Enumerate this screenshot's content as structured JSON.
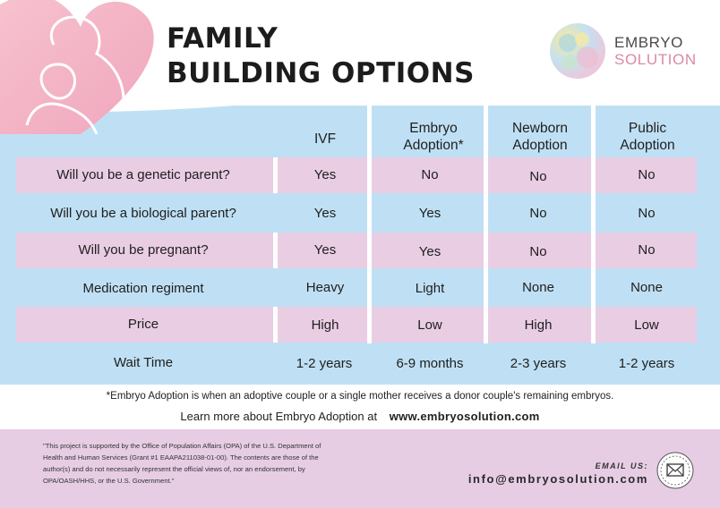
{
  "title": {
    "line1": "FAMILY",
    "line2": "BUILDING OPTIONS"
  },
  "logo": {
    "line1": "EMBRYO",
    "line2": "SOLUTION"
  },
  "columns": [
    "IVF",
    "Embryo Adoption*",
    "Newborn Adoption",
    "Public Adoption"
  ],
  "rows": [
    {
      "question": "Will you be a genetic parent?",
      "values": [
        "Yes",
        "No",
        "No",
        "No"
      ]
    },
    {
      "question": "Will you be a biological parent?",
      "values": [
        "Yes",
        "Yes",
        "No",
        "No"
      ]
    },
    {
      "question": "Will you be pregnant?",
      "values": [
        "Yes",
        "Yes",
        "No",
        "No"
      ]
    },
    {
      "question": "Medication regiment",
      "values": [
        "Heavy",
        "Light",
        "None",
        "None"
      ]
    },
    {
      "question": "Price",
      "values": [
        "High",
        "Low",
        "High",
        "Low"
      ]
    },
    {
      "question": "Wait Time",
      "values": [
        "1-2 years",
        "6-9 months",
        "2-3 years",
        "1-2 years"
      ]
    }
  ],
  "footnote": "*Embryo Adoption is when an adoptive couple or a single mother receives a donor couple's remaining embryos.",
  "learn_more": {
    "text": "Learn more about Embryo Adoption at",
    "url": "www.embryosolution.com"
  },
  "disclaimer": "\"This project is supported by the Office of Population Affairs (OPA) of the U.S. Department of Health and Human Services (Grant #1 EAAPA211038-01-00). The contents are those of the author(s) and do not necessarily represent the official views of, nor an endorsement, by OPA/OASH/HHS, or the U.S. Government.\"",
  "contact": {
    "label": "EMAIL US:",
    "email": "info@embryosolution.com"
  },
  "icons": {
    "heart": "heart-mother-child-icon",
    "logo": "embryo-logo-icon",
    "mail": "envelope-icon"
  },
  "colors": {
    "blue": "#bfe0f4",
    "pink": "#e9cde3",
    "footer": "#e6cde4",
    "accent": "#d98aa9"
  }
}
